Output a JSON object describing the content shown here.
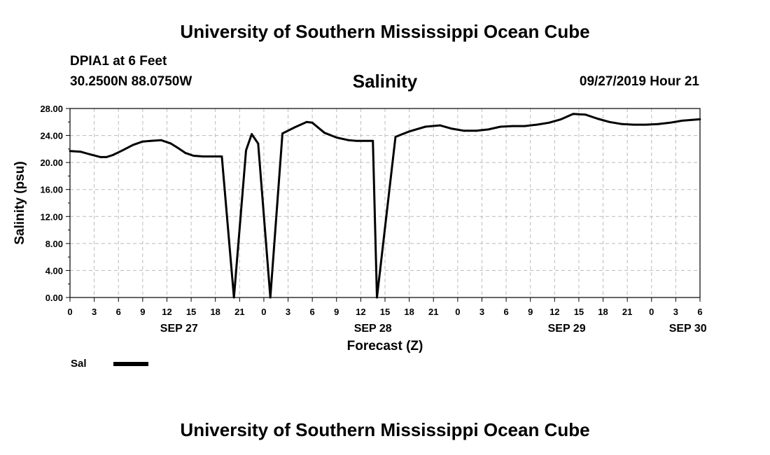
{
  "header": {
    "title": "University of Southern Mississippi Ocean Cube",
    "station": "DPIA1 at 6 Feet",
    "coords": "30.2500N 88.0750W",
    "chart_title": "Salinity",
    "timestamp": "09/27/2019 Hour 21"
  },
  "footer": {
    "title": "University of Southern Mississippi Ocean Cube"
  },
  "legend": {
    "label": "Sal"
  },
  "colors": {
    "line": "#000000",
    "grid": "#bbbbbb",
    "axis": "#000000"
  },
  "chart_data": {
    "type": "line",
    "title": "Salinity",
    "xlabel": "Forecast (Z)",
    "ylabel": "Salinity (psu)",
    "xlim": [
      0,
      78
    ],
    "ylim": [
      0,
      28
    ],
    "grid": true,
    "legend_position": "bottom-left",
    "y_ticks": [
      "0.00",
      "4.00",
      "8.00",
      "12.00",
      "16.00",
      "20.00",
      "24.00",
      "28.00"
    ],
    "x_tick_labels": [
      "0",
      "3",
      "6",
      "9",
      "12",
      "15",
      "18",
      "21",
      "0",
      "3",
      "6",
      "9",
      "12",
      "15",
      "18",
      "21",
      "0",
      "3",
      "6",
      "9",
      "12",
      "15",
      "18",
      "21",
      "0",
      "3",
      "6"
    ],
    "date_labels": [
      {
        "text": "SEP 27",
        "at": 13.5
      },
      {
        "text": "SEP 28",
        "at": 37.5
      },
      {
        "text": "SEP 29",
        "at": 61.5
      },
      {
        "text": "SEP 30",
        "at": 76.5
      }
    ],
    "series": [
      {
        "name": "Sal",
        "x": [
          0,
          1.3,
          2.5,
          3.8,
          4.5,
          5.3,
          6.5,
          7.8,
          9.0,
          10.0,
          11.3,
          12.5,
          13.3,
          14.3,
          15.3,
          16.5,
          18.0,
          18.8,
          20.3,
          21.8,
          22.5,
          23.3,
          24.8,
          26.3,
          27.8,
          29.3,
          30.0,
          31.5,
          33.0,
          34.5,
          35.5,
          37.5,
          38.0,
          40.3,
          42.0,
          44.0,
          45.8,
          47.3,
          48.8,
          50.3,
          51.8,
          53.3,
          54.8,
          56.3,
          57.8,
          59.3,
          60.8,
          62.3,
          63.8,
          65.3,
          66.8,
          68.3,
          69.8,
          71.3,
          72.8,
          74.3,
          75.8,
          78.0
        ],
        "y": [
          21.7,
          21.6,
          21.2,
          20.8,
          20.8,
          21.1,
          21.8,
          22.6,
          23.1,
          23.2,
          23.3,
          22.8,
          22.2,
          21.4,
          21.0,
          20.9,
          20.9,
          20.9,
          0.0,
          21.8,
          24.2,
          22.8,
          0.0,
          24.3,
          25.2,
          26.0,
          25.9,
          24.4,
          23.7,
          23.3,
          23.2,
          23.2,
          0.0,
          23.8,
          24.6,
          25.3,
          25.5,
          25.0,
          24.7,
          24.7,
          24.9,
          25.3,
          25.4,
          25.4,
          25.6,
          25.9,
          26.4,
          27.2,
          27.1,
          26.5,
          26.0,
          25.7,
          25.6,
          25.6,
          25.7,
          25.9,
          26.2,
          26.4
        ]
      }
    ]
  }
}
